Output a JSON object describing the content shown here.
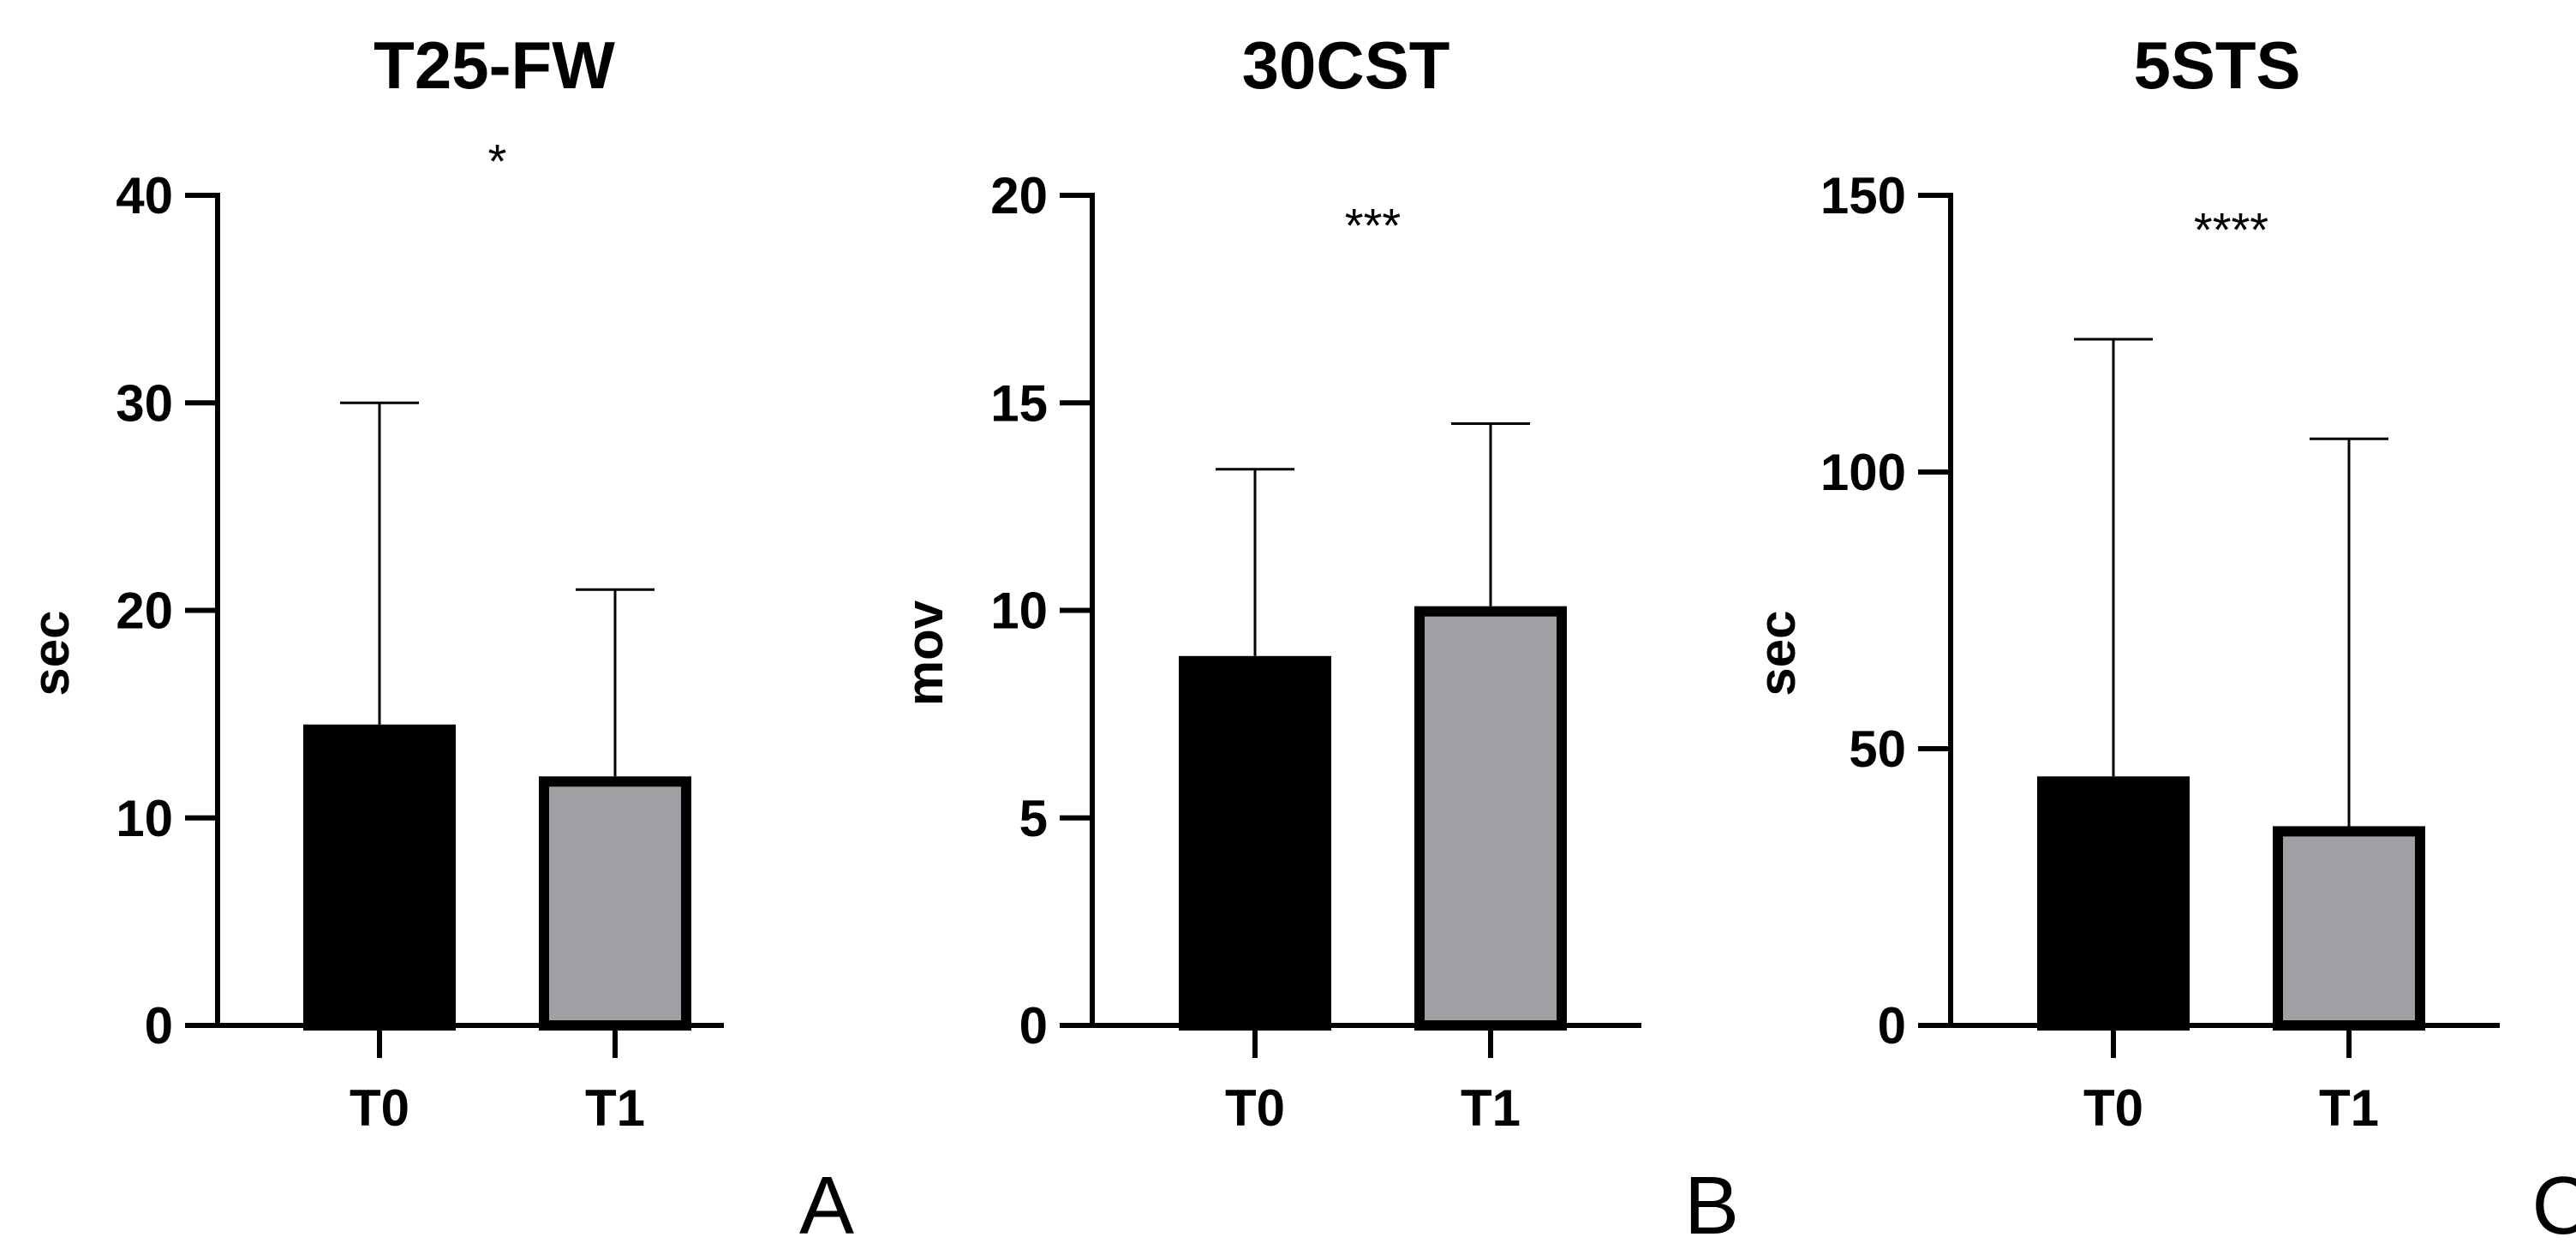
{
  "figure": {
    "panels": [
      "A",
      "B",
      "C"
    ]
  },
  "chart_data": [
    {
      "type": "bar",
      "title": "T25-FW",
      "panel_letter": "A",
      "categories": [
        "T0",
        "T1"
      ],
      "values": [
        14.5,
        12.0
      ],
      "error_upper": [
        30.0,
        21.0
      ],
      "bar_colors": [
        "#000000",
        "#a0a0a4"
      ],
      "xlabel": "",
      "ylabel": "sec",
      "ylim": [
        0,
        40
      ],
      "yticks": [
        0,
        10,
        20,
        30,
        40
      ],
      "significance": "*",
      "significance_value": 42.5
    },
    {
      "type": "bar",
      "title": "30CST",
      "panel_letter": "B",
      "categories": [
        "T0",
        "T1"
      ],
      "values": [
        8.9,
        10.1
      ],
      "error_upper": [
        13.4,
        14.5
      ],
      "bar_colors": [
        "#000000",
        "#a0a0a4"
      ],
      "xlabel": "",
      "ylabel": "mov",
      "ylim": [
        0,
        20
      ],
      "yticks": [
        0,
        5,
        10,
        15,
        20
      ],
      "significance": "***",
      "significance_value": 19.7
    },
    {
      "type": "bar",
      "title": "5STS",
      "panel_letter": "C",
      "categories": [
        "T0",
        "T1"
      ],
      "values": [
        45,
        36
      ],
      "error_upper": [
        124,
        106
      ],
      "bar_colors": [
        "#000000",
        "#a0a0a4"
      ],
      "xlabel": "",
      "ylabel": "sec",
      "ylim": [
        0,
        150
      ],
      "yticks": [
        0,
        50,
        100,
        150
      ],
      "significance": "****",
      "significance_value": 147
    }
  ]
}
